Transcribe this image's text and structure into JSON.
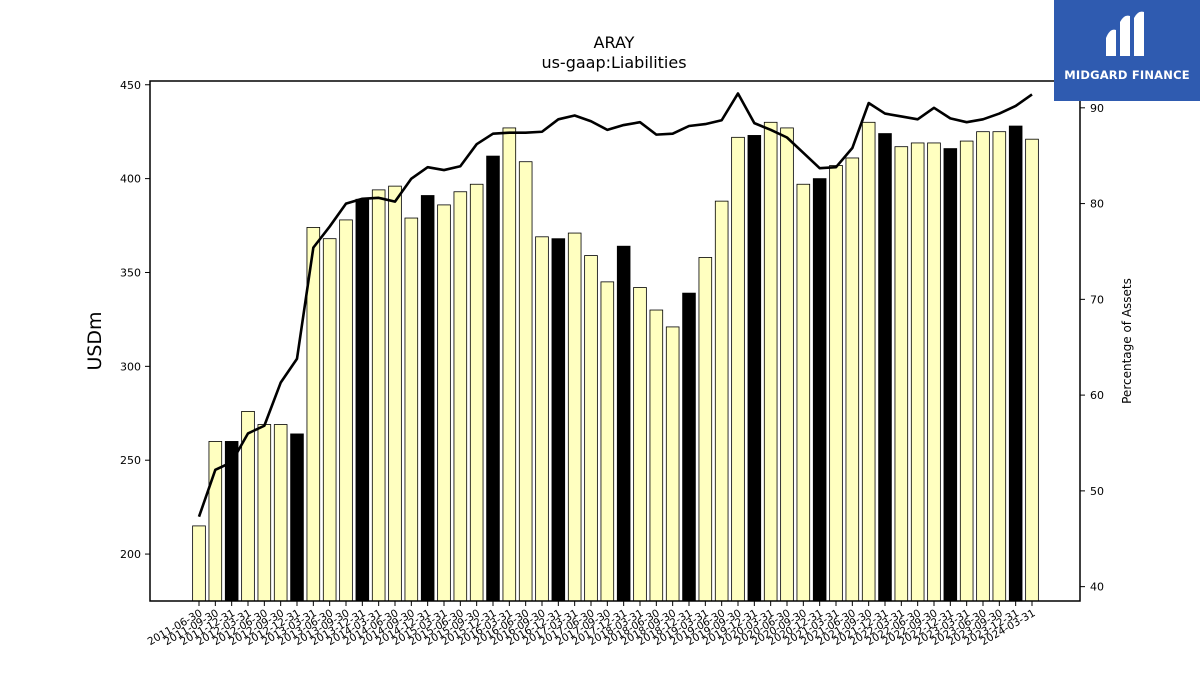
{
  "chart_data": {
    "type": "bar+line",
    "title": "ARAY",
    "subtitle": "us-gaap:Liabilities",
    "ylabel": "USDm",
    "y2label": "Percentage of Assets",
    "ylim": [
      175,
      452
    ],
    "y2lim": [
      38.5,
      92.8
    ],
    "yticks": [
      200,
      250,
      300,
      350,
      400,
      450
    ],
    "y2ticks": [
      40,
      50,
      60,
      70,
      80,
      90
    ],
    "bar_color": "#ffffc0",
    "highlight_color": "#000000",
    "line_color": "#000000",
    "categories": [
      "2011-06-30",
      "2011-09-30",
      "2011-12-31",
      "2012-03-31",
      "2012-06-30",
      "2012-09-30",
      "2012-12-31",
      "2013-03-31",
      "2013-06-30",
      "2013-09-30",
      "2013-12-31",
      "2014-03-31",
      "2014-06-30",
      "2014-09-30",
      "2014-12-31",
      "2015-03-31",
      "2015-06-30",
      "2015-09-30",
      "2015-12-31",
      "2016-03-31",
      "2016-06-30",
      "2016-09-30",
      "2016-12-31",
      "2017-03-31",
      "2017-06-30",
      "2017-09-30",
      "2017-12-31",
      "2018-03-31",
      "2018-06-30",
      "2018-09-30",
      "2018-12-31",
      "2019-03-31",
      "2019-06-30",
      "2019-09-30",
      "2019-12-31",
      "2020-03-31",
      "2020-06-30",
      "2020-09-30",
      "2020-12-31",
      "2021-03-31",
      "2021-06-30",
      "2021-09-30",
      "2021-12-31",
      "2022-03-31",
      "2022-06-30",
      "2022-09-30",
      "2022-12-31",
      "2023-03-31",
      "2023-06-30",
      "2023-09-30",
      "2023-12-31",
      "2024-03-31"
    ],
    "xtick_labels": [
      "2011-06-30",
      "2011-09-30",
      "2011-12-31",
      "2012-03-31",
      "2012-06-30",
      "2012-09-30",
      "2012-12-31",
      "2013-03-31",
      "2013-06-30",
      "2013-09-30",
      "2013-12-31",
      "2014-03-31",
      "2014-06-30",
      "2014-09-30",
      "2014-12-31",
      "2015-03-31",
      "2015-06-30",
      "2015-09-30",
      "2015-12-31",
      "2016-03-31",
      "2016-06-30",
      "2016-09-30",
      "2016-12-31",
      "2017-03-31",
      "2017-06-30",
      "2017-09-30",
      "2017-12-31",
      "2018-03-31",
      "2018-06-30",
      "2018-09-30",
      "2018-12-31",
      "2019-03-31",
      "2019-06-30",
      "2019-09-30",
      "2019-12-31",
      "2020-03-31",
      "2020-06-30",
      "2020-09-30",
      "2020-12-31",
      "2021-03-31",
      "2021-06-30",
      "2021-09-30",
      "2021-12-31",
      "2022-03-31",
      "2022-06-30",
      "2022-09-30",
      "2022-12-31",
      "2023-03-31",
      "2023-06-30",
      "2023-09-30",
      "2023-12-31",
      "2024-03-31"
    ],
    "series": [
      {
        "kind": "bar",
        "values": [
          215,
          260,
          260,
          276,
          269,
          269,
          264,
          374,
          368,
          378,
          389,
          394,
          396,
          379,
          391,
          386,
          393,
          397,
          412,
          427,
          409,
          369,
          368,
          371,
          359,
          345,
          364,
          342,
          330,
          321,
          339,
          358,
          388,
          422,
          423,
          430,
          427,
          397,
          400,
          407,
          411,
          430,
          424,
          417,
          419,
          419,
          416,
          420,
          425,
          425,
          428,
          421
        ],
        "highlight": [
          false,
          false,
          true,
          false,
          false,
          false,
          true,
          false,
          false,
          false,
          true,
          false,
          false,
          false,
          true,
          false,
          false,
          false,
          true,
          false,
          false,
          false,
          true,
          false,
          false,
          false,
          true,
          false,
          false,
          false,
          true,
          false,
          false,
          false,
          true,
          false,
          false,
          false,
          true,
          false,
          false,
          false,
          true,
          false,
          false,
          false,
          true,
          false,
          false,
          false,
          true,
          false
        ]
      },
      {
        "kind": "line",
        "axis": "y2",
        "values": [
          47.3,
          52.2,
          53.0,
          56.0,
          56.8,
          61.3,
          63.8,
          75.4,
          77.6,
          80.0,
          80.5,
          80.6,
          80.2,
          82.6,
          83.8,
          83.5,
          83.9,
          86.2,
          87.3,
          87.4,
          87.4,
          87.5,
          88.8,
          89.2,
          88.6,
          87.7,
          88.2,
          88.5,
          87.2,
          87.3,
          88.1,
          88.3,
          88.7,
          91.5,
          88.4,
          87.7,
          86.9,
          85.3,
          83.7,
          83.8,
          85.8,
          90.5,
          89.4,
          89.1,
          88.8,
          90.0,
          88.9,
          88.5,
          88.8,
          89.4,
          90.2,
          91.4
        ]
      }
    ]
  },
  "logo": {
    "text": "MIDGARD FINANCE",
    "icon": "midgard-m-logo-icon"
  }
}
